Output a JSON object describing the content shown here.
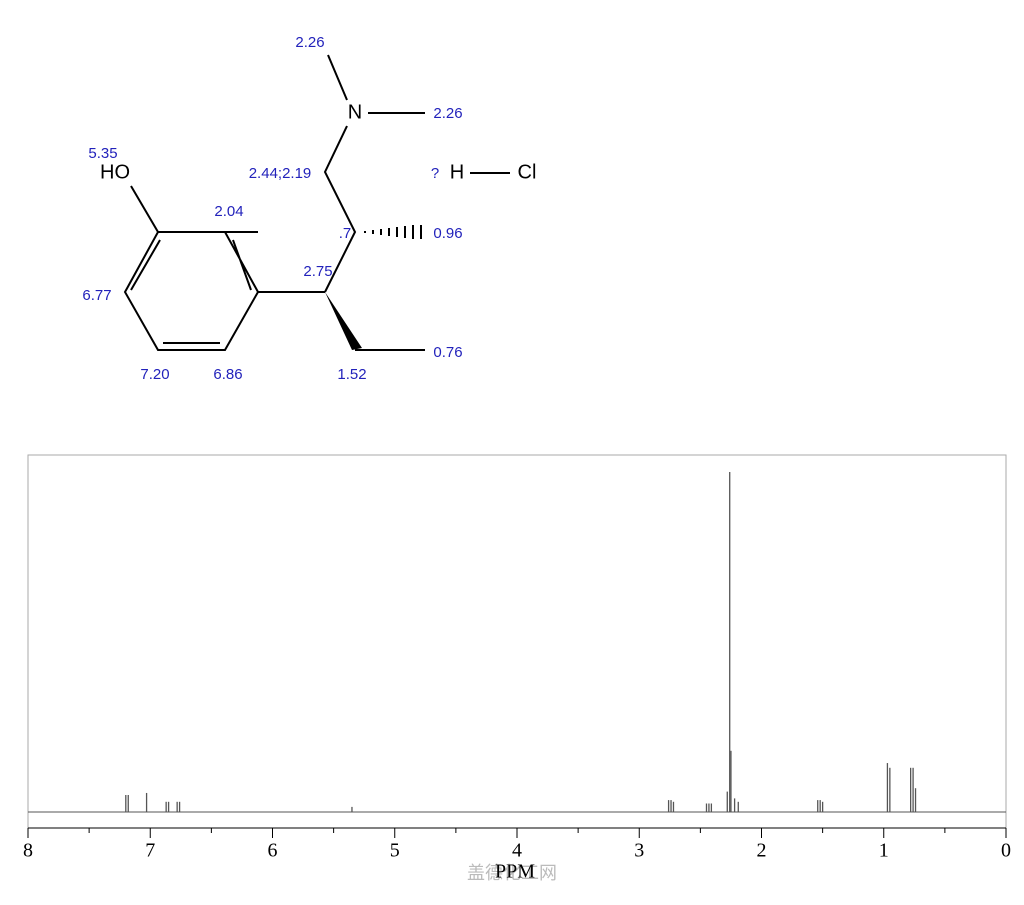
{
  "molecule": {
    "atoms": {
      "n": "N",
      "ho": "HO",
      "q": "?",
      "h": "H",
      "cl": "Cl"
    },
    "shifts": {
      "nme_top": "2.26",
      "nme_right": "2.26",
      "oh": "5.35",
      "ch2": "2.44;2.19",
      "ar_me": "2.04",
      "ch": ".7",
      "ch3_a": "0.96",
      "ar_677": "6.77",
      "ch_b": "2.75",
      "ar_720": "7.20",
      "ar_686": "6.86",
      "ch2_b": "1.52",
      "ch3_b": "0.76"
    }
  },
  "chart_data": {
    "type": "spectrum",
    "x_label": "PPM",
    "watermark": "盖德化工网",
    "color": "#555555",
    "xlim": [
      8,
      0
    ],
    "xticks": [
      8,
      7,
      6,
      5,
      4,
      3,
      2,
      1,
      0
    ],
    "minor_xticks": [
      7.5,
      6.5,
      5.5,
      4.5,
      3.5,
      2.5,
      1.5,
      0.5
    ],
    "ylim": [
      0,
      100
    ],
    "x": [
      7.2,
      7.18,
      7.03,
      6.87,
      6.85,
      6.78,
      6.76,
      5.35,
      2.76,
      2.74,
      2.72,
      2.45,
      2.43,
      2.41,
      2.28,
      2.26,
      2.25,
      2.22,
      2.19,
      1.54,
      1.52,
      1.5,
      0.97,
      0.95,
      0.78,
      0.76,
      0.74
    ],
    "values": [
      5,
      5,
      5.6,
      3,
      3,
      3,
      3,
      1.5,
      3.5,
      3.5,
      3,
      2.5,
      2.5,
      2.5,
      6,
      100,
      18,
      4,
      3,
      3.5,
      3.5,
      3,
      14.4,
      13,
      13,
      13,
      7
    ]
  }
}
